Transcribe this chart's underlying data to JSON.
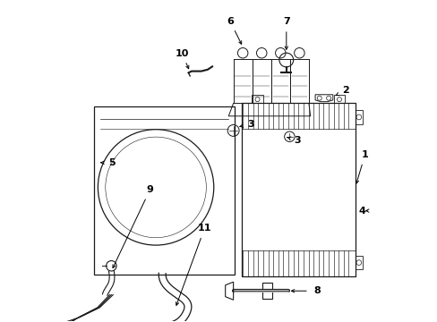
{
  "bg_color": "#ffffff",
  "line_color": "#1a1a1a",
  "label_color": "#000000",
  "fig_w": 4.89,
  "fig_h": 3.6,
  "dpi": 100,
  "labels": {
    "1": [
      0.945,
      0.52,
      0.895,
      0.52
    ],
    "2": [
      0.88,
      0.72,
      0.845,
      0.72
    ],
    "3a": [
      0.595,
      0.615,
      0.635,
      0.615
    ],
    "3b": [
      0.73,
      0.565,
      0.695,
      0.565
    ],
    "4": [
      0.915,
      0.345,
      0.875,
      0.345
    ],
    "5": [
      0.175,
      0.495,
      0.215,
      0.495
    ],
    "6": [
      0.535,
      0.925,
      0.535,
      0.87
    ],
    "7": [
      0.71,
      0.925,
      0.71,
      0.855
    ],
    "8": [
      0.795,
      0.1,
      0.745,
      0.1
    ],
    "9": [
      0.3,
      0.42,
      0.33,
      0.395
    ],
    "10": [
      0.46,
      0.835,
      0.48,
      0.795
    ],
    "11": [
      0.475,
      0.3,
      0.445,
      0.325
    ]
  }
}
